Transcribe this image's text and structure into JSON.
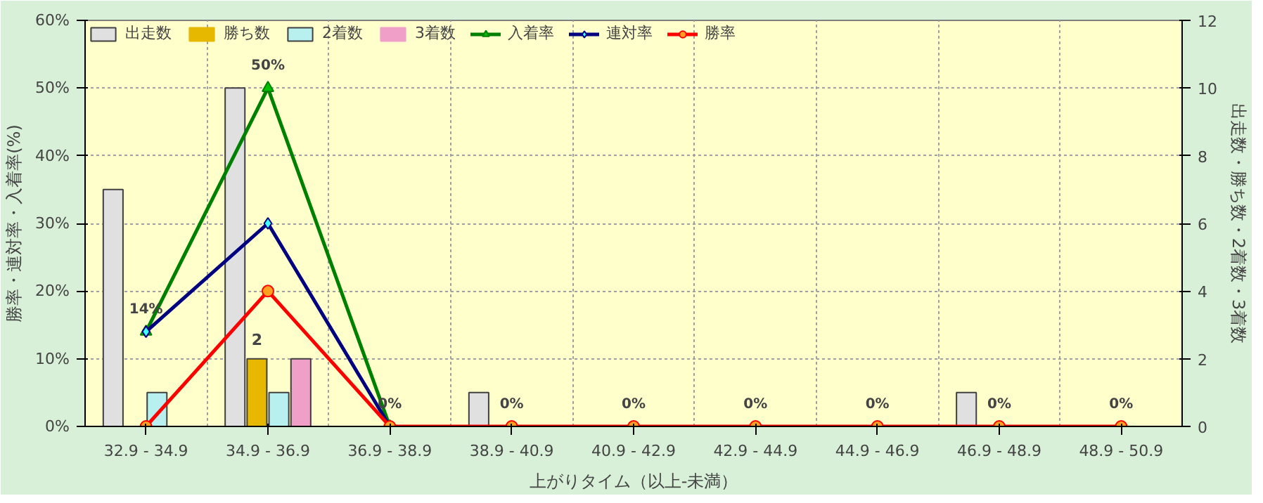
{
  "chart_data": {
    "type": "bar",
    "xlabel": "上がりタイム（以上-未満）",
    "ylabel": "勝率・連対率・入着率(%)",
    "y2label": "出走数・勝ち数・2着数・3着数",
    "categories": [
      "32.9 - 34.9",
      "34.9 - 36.9",
      "36.9 - 38.9",
      "38.9 - 40.9",
      "40.9 - 42.9",
      "42.9 - 44.9",
      "44.9 - 46.9",
      "46.9 - 48.9",
      "48.9 - 50.9"
    ],
    "series": [
      {
        "name": "出走数",
        "axis": "y2",
        "color": "#e0e0e0",
        "values": [
          7,
          10,
          0,
          1,
          0,
          0,
          0,
          1,
          0
        ]
      },
      {
        "name": "勝ち数",
        "axis": "y2",
        "color": "#e6b800",
        "values": [
          0,
          2,
          0,
          0,
          0,
          0,
          0,
          0,
          0
        ],
        "value_labels": [
          null,
          "2",
          null,
          null,
          null,
          null,
          null,
          null,
          null
        ]
      },
      {
        "name": "2着数",
        "axis": "y2",
        "color": "#b8f0f0",
        "values": [
          1,
          1,
          0,
          0,
          0,
          0,
          0,
          0,
          0
        ]
      },
      {
        "name": "3着数",
        "axis": "y2",
        "color": "#f0a0c8",
        "values": [
          0,
          2,
          0,
          0,
          0,
          0,
          0,
          0,
          0
        ]
      },
      {
        "name": "入着率",
        "type": "line",
        "color": "#008000",
        "marker": "triangle",
        "values": [
          14,
          50,
          0,
          null,
          null,
          null,
          null,
          null,
          null
        ],
        "value_labels": [
          "14%",
          "50%",
          "0%",
          null,
          null,
          null,
          null,
          null,
          null
        ]
      },
      {
        "name": "連対率",
        "type": "line",
        "color": "#000080",
        "marker": "diamond",
        "values": [
          14,
          30,
          0,
          null,
          null,
          null,
          null,
          null,
          null
        ]
      },
      {
        "name": "勝率",
        "type": "line",
        "color": "#ff0000",
        "marker": "circle",
        "values": [
          0,
          20,
          0,
          0,
          0,
          0,
          0,
          0,
          0
        ],
        "value_labels": [
          null,
          null,
          null,
          "0%",
          "0%",
          "0%",
          "0%",
          "0%",
          "0%"
        ]
      }
    ],
    "ylim": [
      0,
      60
    ],
    "yticks": [
      {
        "value": 0,
        "label": "0%"
      },
      {
        "value": 10,
        "label": "10%"
      },
      {
        "value": 20,
        "label": "20%"
      },
      {
        "value": 30,
        "label": "30%"
      },
      {
        "value": 40,
        "label": "40%"
      },
      {
        "value": 50,
        "label": "50%"
      },
      {
        "value": 60,
        "label": "60%"
      }
    ],
    "y2lim": [
      0,
      12
    ],
    "y2ticks": [
      0,
      2,
      4,
      6,
      8,
      10,
      12
    ],
    "grid": true,
    "legend": "top left",
    "line_style": "solid"
  }
}
